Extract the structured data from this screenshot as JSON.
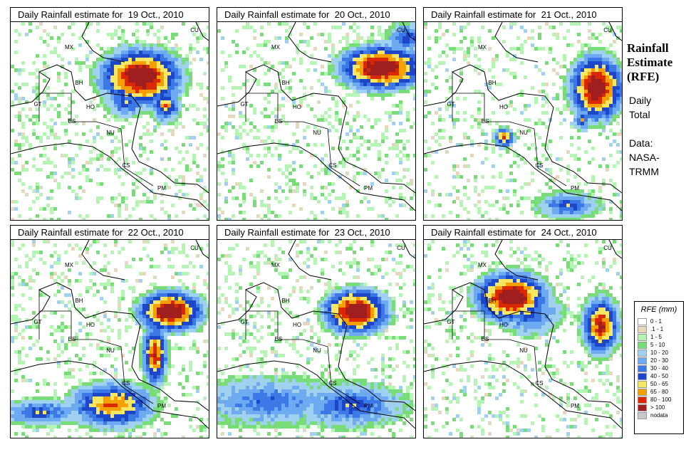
{
  "panels": [
    {
      "title": "Daily Rainfall estimate for  19 Oct., 2010"
    },
    {
      "title": "Daily Rainfall estimate for  20 Oct., 2010"
    },
    {
      "title": "Daily Rainfall estimate for  21 Oct., 2010"
    },
    {
      "title": "Daily Rainfall estimate for  22 Oct., 2010"
    },
    {
      "title": "Daily Rainfall estimate for  23 Oct., 2010"
    },
    {
      "title": "Daily Rainfall estimate for  24 Oct., 2010"
    }
  ],
  "map_labels": [
    "MX",
    "BH",
    "GT",
    "HO",
    "ES",
    "NU",
    "CS",
    "PM",
    "CU"
  ],
  "side": {
    "title_line1": "Rainfall",
    "title_line2": "Estimate",
    "title_line3": "(RFE)",
    "daily": "Daily",
    "total": "Total",
    "data_label": "Data:",
    "source1": "NASA-",
    "source2": "TRMM"
  },
  "legend": {
    "title": "RFE (mm)",
    "items": [
      {
        "label": "0 - 1",
        "color": "#ffffff"
      },
      {
        "label": ".1 - 1",
        "color": "#e6d7bf"
      },
      {
        "label": "1 - 5",
        "color": "#b4f5b4"
      },
      {
        "label": "5 - 10",
        "color": "#78dc78"
      },
      {
        "label": "10 - 20",
        "color": "#a0d2f0"
      },
      {
        "label": "20 - 30",
        "color": "#6eaaf0"
      },
      {
        "label": "30 - 40",
        "color": "#3c78e6"
      },
      {
        "label": "40 - 50",
        "color": "#1e46c8"
      },
      {
        "label": "50 - 65",
        "color": "#f5e664"
      },
      {
        "label": "65 - 80",
        "color": "#f5a000"
      },
      {
        "label": "80 - 100",
        "color": "#dc2800"
      },
      {
        "label": "> 100",
        "color": "#a01e1e"
      },
      {
        "label": "nodata",
        "color": "#c8c8c8"
      }
    ]
  }
}
